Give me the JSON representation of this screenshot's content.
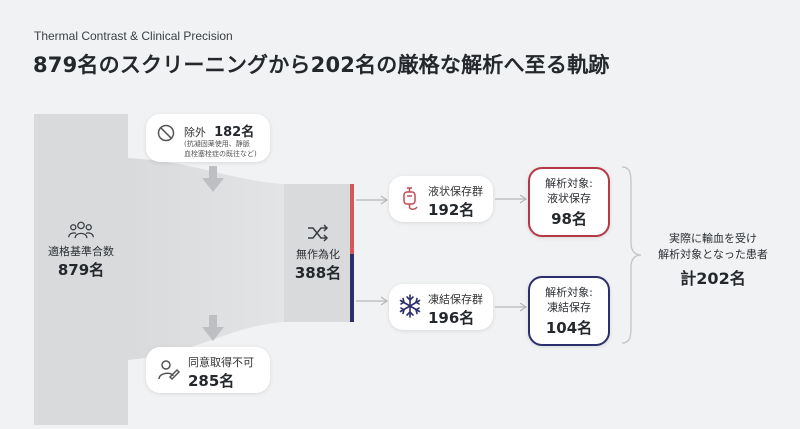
{
  "header": {
    "subtitle": "Thermal Contrast & Clinical Precision",
    "title": "879名のスクリーニングから202名の厳格な解析へ至る軌跡"
  },
  "eligible": {
    "label": "適格基準合数",
    "count": "879名",
    "icon": "people-icon"
  },
  "excluded": {
    "label": "除外",
    "count": "182名",
    "note_line1": "(抗凝固薬使用、静脈",
    "note_line2": "血栓塞栓症の既往など)",
    "icon": "prohibited-icon"
  },
  "no_consent": {
    "label": "同意取得不可",
    "count": "285名",
    "icon": "user-edit-icon"
  },
  "randomized": {
    "label": "無作為化",
    "count": "388名",
    "icon": "shuffle-icon"
  },
  "liquid_group": {
    "label": "液状保存群",
    "count": "192名",
    "icon": "blood-bag-icon"
  },
  "frozen_group": {
    "label": "凍結保存群",
    "count": "196名",
    "icon": "snowflake-icon"
  },
  "liquid_analysis": {
    "line1": "解析対象:",
    "line2": "液状保存",
    "count": "98名"
  },
  "frozen_analysis": {
    "line1": "解析対象:",
    "line2": "凍結保存",
    "count": "104名"
  },
  "total": {
    "line1": "実際に輸血を受け",
    "line2": "解析対象となった患者",
    "count": "計202名"
  },
  "colors": {
    "liquid": "#b53a45",
    "frozen": "#2c2f6b",
    "bar": "#d9dadc",
    "background": "#f1f2f3"
  }
}
